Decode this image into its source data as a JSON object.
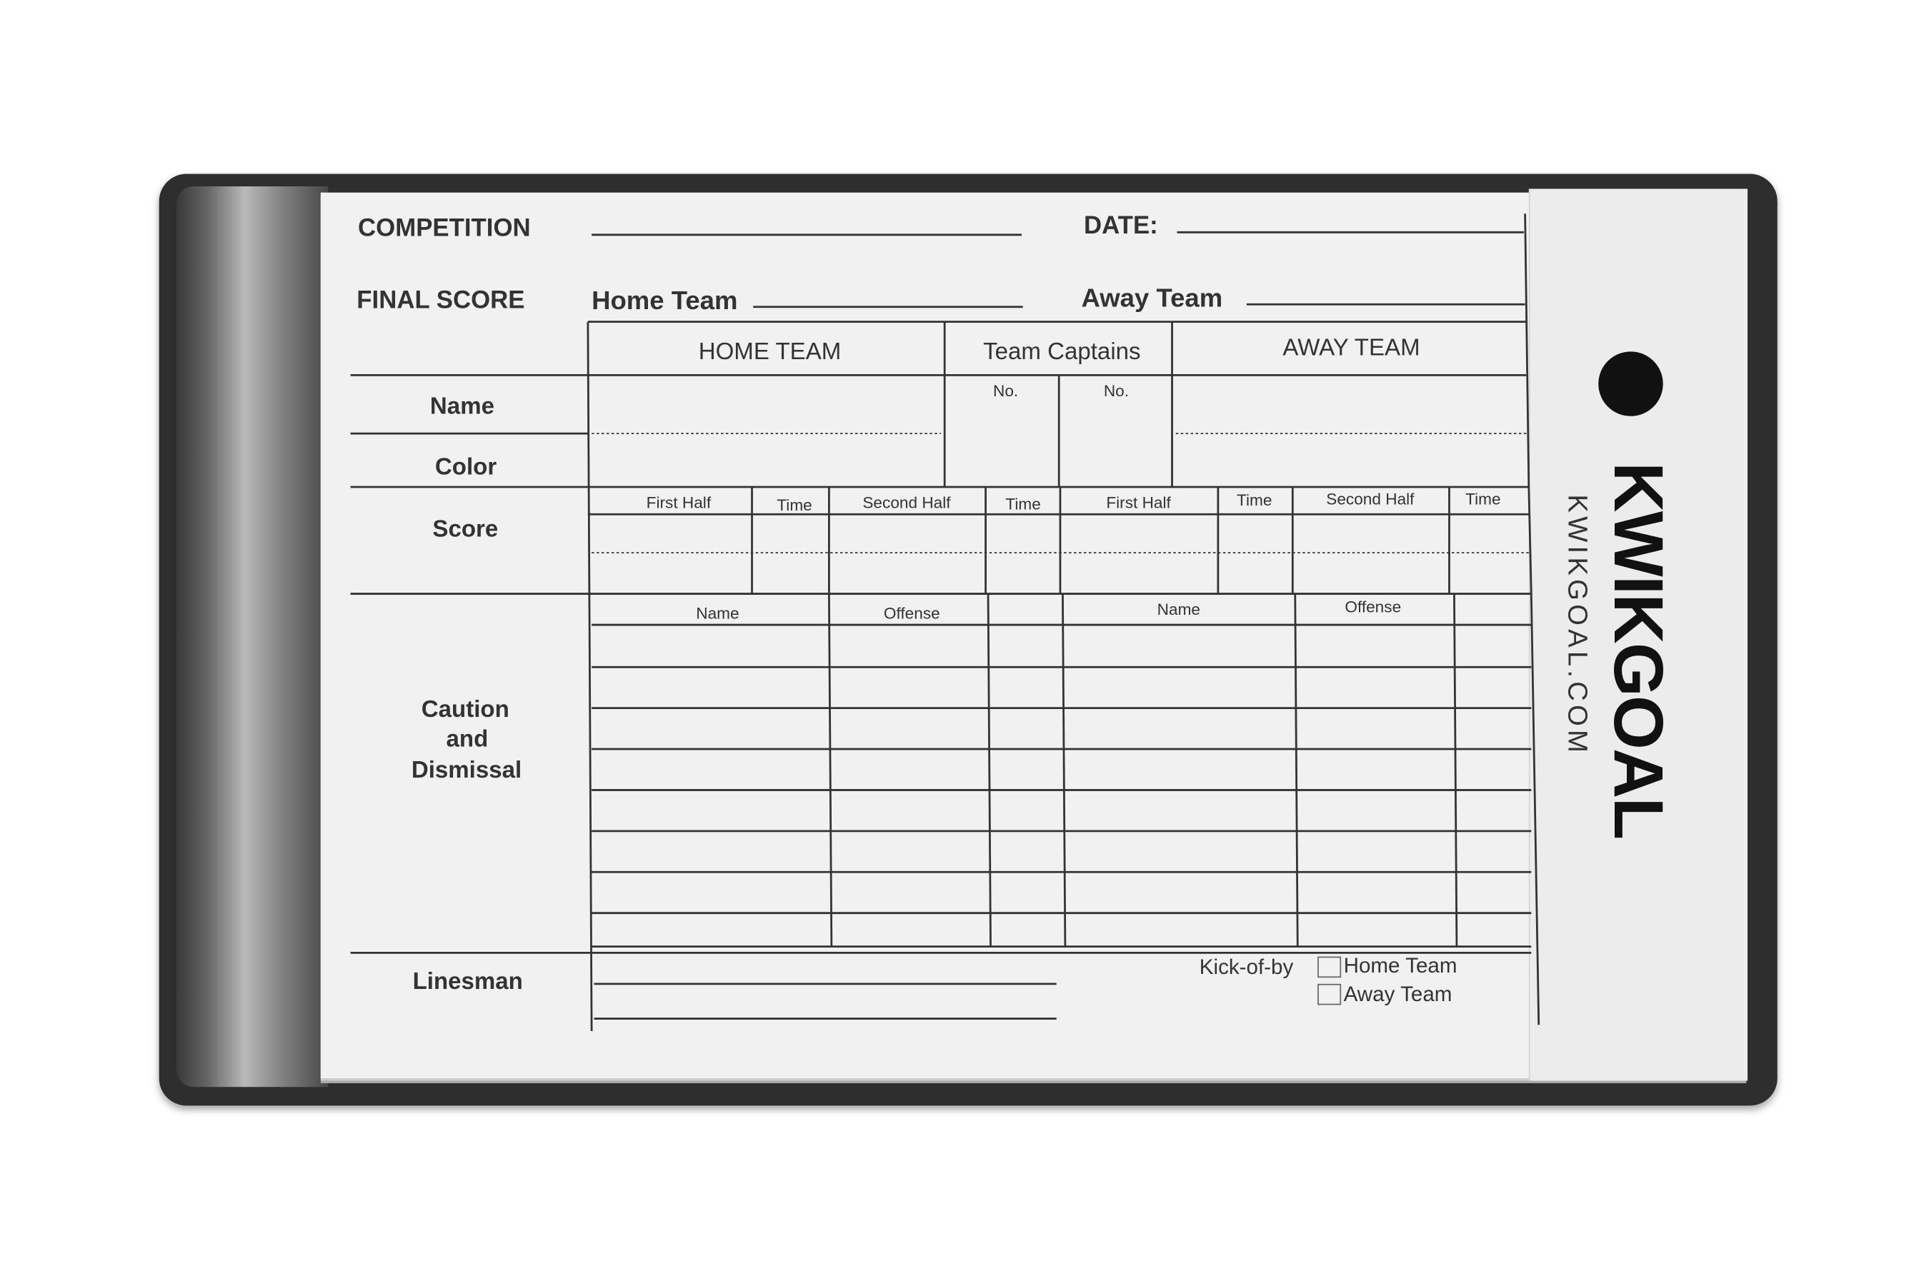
{
  "header": {
    "competition": "COMPETITION",
    "date": "DATE:",
    "final_score": "FINAL SCORE",
    "home_team": "Home Team",
    "away_team": "Away Team"
  },
  "table_headers": {
    "home": "HOME TEAM",
    "captains": "Team Captains",
    "away": "AWAY TEAM",
    "no1": "No.",
    "no2": "No."
  },
  "row_labels": {
    "name": "Name",
    "color": "Color",
    "score": "Score",
    "caution_1": "Caution",
    "caution_2": "and",
    "caution_3": "Dismissal",
    "linesman": "Linesman"
  },
  "score_columns": [
    "First Half",
    "Time",
    "Second Half",
    "Time",
    "First Half",
    "Time",
    "Second Half",
    "Time"
  ],
  "caution_columns": [
    "Name",
    "Offense",
    "Name",
    "Offense"
  ],
  "kickoff": {
    "label": "Kick-of-by",
    "option_home": "Home Team",
    "option_away": "Away Team"
  },
  "brand": {
    "logo": "KWIKGOAL",
    "url": "KWIKGOAL.COM"
  },
  "colors": {
    "wallet": "#2e2e2e",
    "card": "#f1f1f1",
    "ink": "#333333"
  }
}
